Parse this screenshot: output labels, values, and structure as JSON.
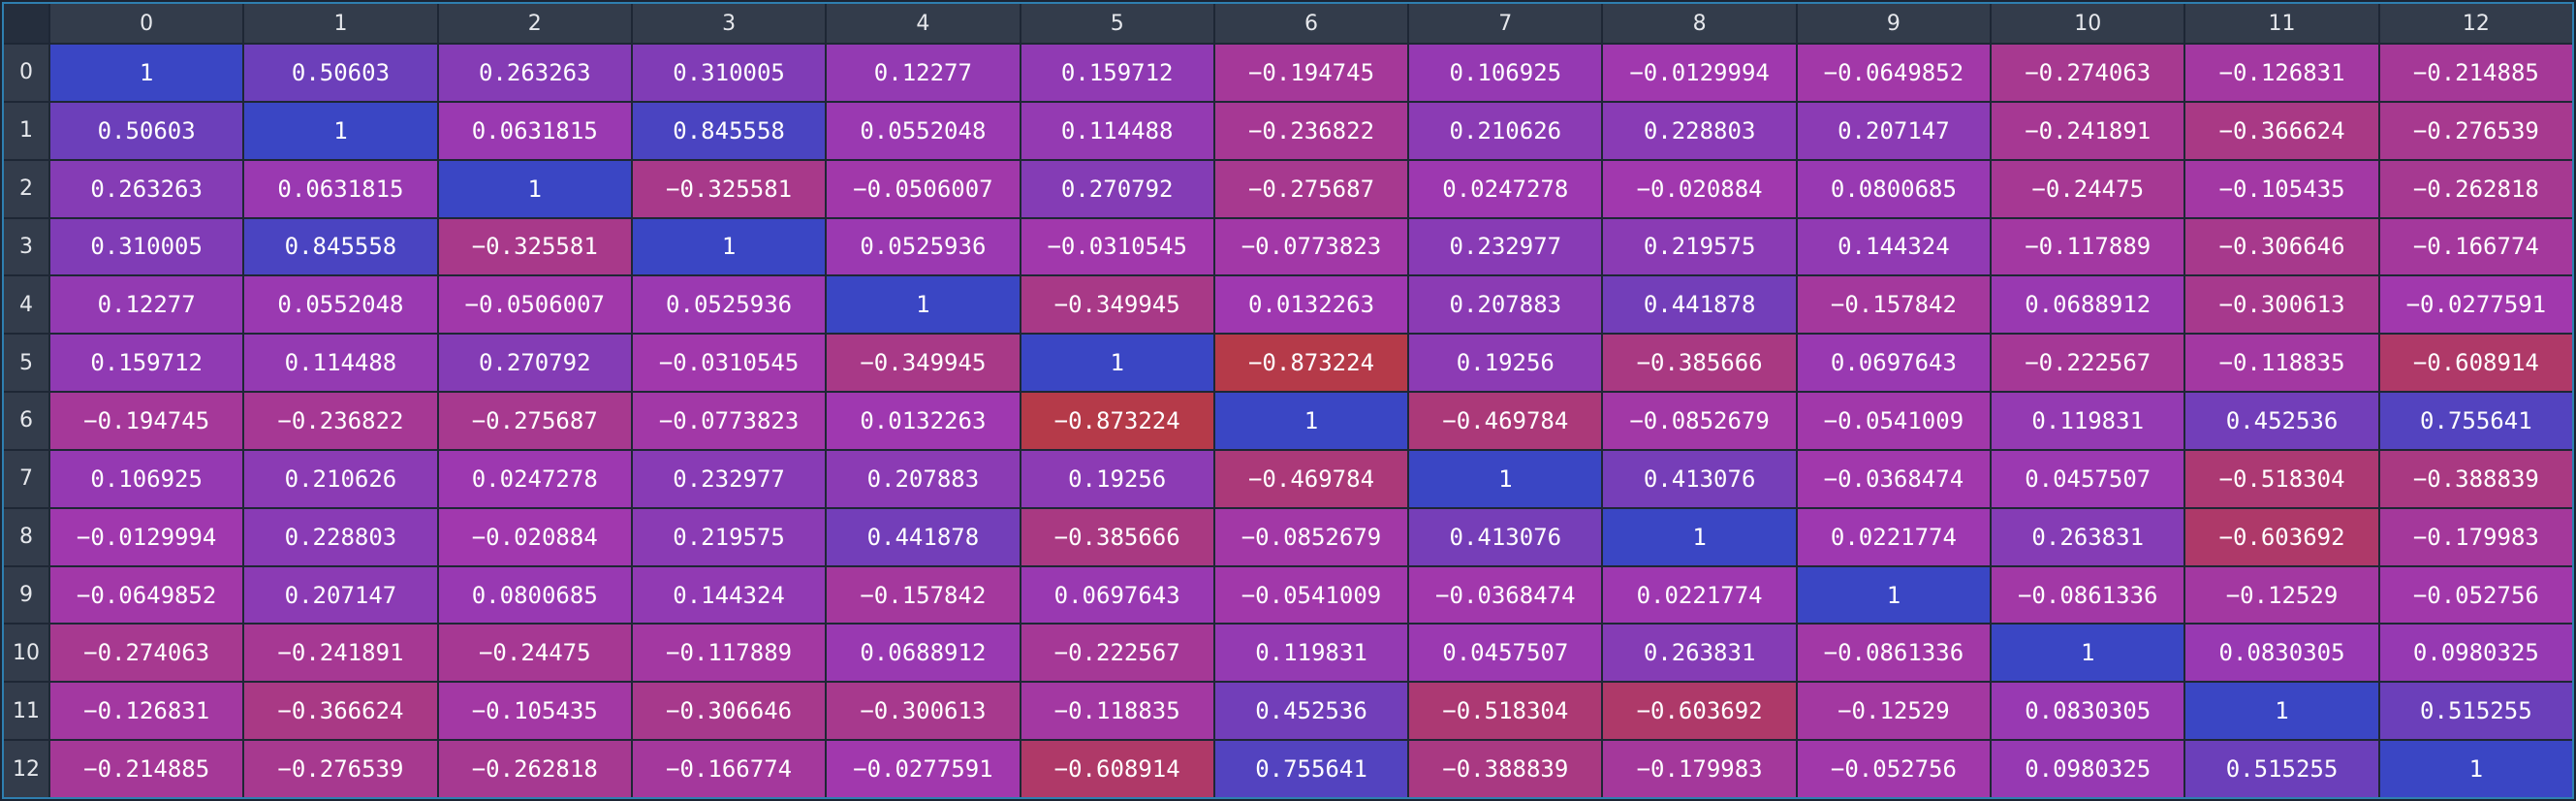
{
  "chart_data": {
    "type": "heatmap",
    "labels": [
      "0",
      "1",
      "2",
      "3",
      "4",
      "5",
      "6",
      "7",
      "8",
      "9",
      "10",
      "11",
      "12"
    ],
    "display": [
      [
        "1",
        "0.50603",
        "0.263263",
        "0.310005",
        "0.12277",
        "0.159712",
        "−0.194745",
        "0.106925",
        "−0.0129994",
        "−0.0649852",
        "−0.274063",
        "−0.126831",
        "−0.214885"
      ],
      [
        "0.50603",
        "1",
        "0.0631815",
        "0.845558",
        "0.0552048",
        "0.114488",
        "−0.236822",
        "0.210626",
        "0.228803",
        "0.207147",
        "−0.241891",
        "−0.366624",
        "−0.276539"
      ],
      [
        "0.263263",
        "0.0631815",
        "1",
        "−0.325581",
        "−0.0506007",
        "0.270792",
        "−0.275687",
        "0.0247278",
        "−0.020884",
        "0.0800685",
        "−0.24475",
        "−0.105435",
        "−0.262818"
      ],
      [
        "0.310005",
        "0.845558",
        "−0.325581",
        "1",
        "0.0525936",
        "−0.0310545",
        "−0.0773823",
        "0.232977",
        "0.219575",
        "0.144324",
        "−0.117889",
        "−0.306646",
        "−0.166774"
      ],
      [
        "0.12277",
        "0.0552048",
        "−0.0506007",
        "0.0525936",
        "1",
        "−0.349945",
        "0.0132263",
        "0.207883",
        "0.441878",
        "−0.157842",
        "0.0688912",
        "−0.300613",
        "−0.0277591"
      ],
      [
        "0.159712",
        "0.114488",
        "0.270792",
        "−0.0310545",
        "−0.349945",
        "1",
        "−0.873224",
        "0.19256",
        "−0.385666",
        "0.0697643",
        "−0.222567",
        "−0.118835",
        "−0.608914"
      ],
      [
        "−0.194745",
        "−0.236822",
        "−0.275687",
        "−0.0773823",
        "0.0132263",
        "−0.873224",
        "1",
        "−0.469784",
        "−0.0852679",
        "−0.0541009",
        "0.119831",
        "0.452536",
        "0.755641"
      ],
      [
        "0.106925",
        "0.210626",
        "0.0247278",
        "0.232977",
        "0.207883",
        "0.19256",
        "−0.469784",
        "1",
        "0.413076",
        "−0.0368474",
        "0.0457507",
        "−0.518304",
        "−0.388839"
      ],
      [
        "−0.0129994",
        "0.228803",
        "−0.020884",
        "0.219575",
        "0.441878",
        "−0.385666",
        "−0.0852679",
        "0.413076",
        "1",
        "0.0221774",
        "0.263831",
        "−0.603692",
        "−0.179983"
      ],
      [
        "−0.0649852",
        "0.207147",
        "0.0800685",
        "0.144324",
        "−0.157842",
        "0.0697643",
        "−0.0541009",
        "−0.0368474",
        "0.0221774",
        "1",
        "−0.0861336",
        "−0.12529",
        "−0.052756"
      ],
      [
        "−0.274063",
        "−0.241891",
        "−0.24475",
        "−0.117889",
        "0.0688912",
        "−0.222567",
        "0.119831",
        "0.0457507",
        "0.263831",
        "−0.0861336",
        "1",
        "0.0830305",
        "0.0980325"
      ],
      [
        "−0.126831",
        "−0.366624",
        "−0.105435",
        "−0.306646",
        "−0.300613",
        "−0.118835",
        "0.452536",
        "−0.518304",
        "−0.603692",
        "−0.12529",
        "0.0830305",
        "1",
        "0.515255"
      ],
      [
        "−0.214885",
        "−0.276539",
        "−0.262818",
        "−0.166774",
        "−0.0277591",
        "−0.608914",
        "0.755641",
        "−0.388839",
        "−0.179983",
        "−0.052756",
        "0.0980325",
        "0.515255",
        "1"
      ]
    ],
    "value_range": [
      -1,
      1
    ],
    "color_scale": {
      "high": "#3a46c4",
      "mid": "#a038b0",
      "low": "#b83a3a"
    },
    "grid": true,
    "legend": "none"
  }
}
